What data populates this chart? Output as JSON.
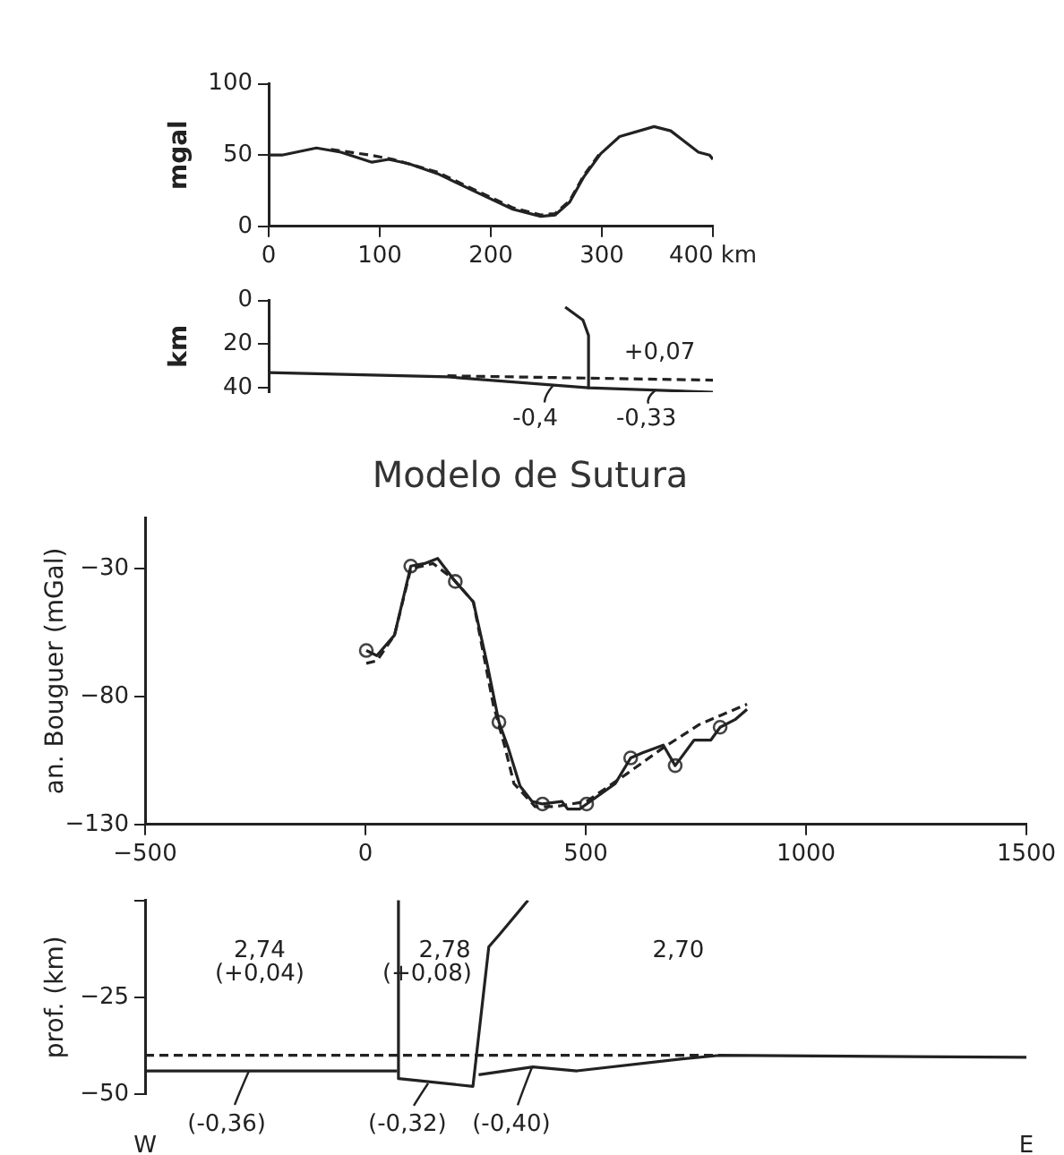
{
  "chart_data": [
    {
      "type": "line",
      "ylabel": "mgal",
      "xlim": [
        0,
        400
      ],
      "xticks": [
        0,
        100,
        200,
        300,
        {
          "value": 400,
          "label": "400 km"
        }
      ],
      "ylim": [
        0,
        100
      ],
      "yticks": [
        0,
        50,
        100
      ],
      "grid": false,
      "legend": false,
      "series": [
        {
          "color": "#222222",
          "line_style": "solid",
          "marker": "none",
          "x": [
            0,
            12,
            43,
            65,
            93,
            108,
            126,
            152,
            187,
            220,
            245,
            258,
            271,
            284,
            299,
            316,
            347,
            362,
            387,
            397,
            400
          ],
          "values": [
            50,
            50,
            55,
            52,
            45,
            47,
            44,
            37,
            24,
            12,
            7,
            8,
            17,
            35,
            51,
            63,
            70,
            67,
            52,
            50,
            47
          ]
        },
        {
          "color": "#222222",
          "line_style": "dashed",
          "marker": "none",
          "x": [
            56,
            91,
            112,
            152,
            187,
            220,
            245,
            258,
            271,
            284,
            299
          ],
          "values": [
            54,
            50,
            47,
            38,
            25,
            13,
            8,
            9,
            18,
            36,
            52
          ]
        }
      ]
    },
    {
      "type": "line",
      "ylabel": "km",
      "xlim": [
        0,
        400
      ],
      "ylim": [
        42,
        0
      ],
      "yticks": [
        0,
        20,
        40
      ],
      "tick_labels": "y",
      "grid": false,
      "legend": false,
      "series": [
        {
          "color": "#222222",
          "line_style": "solid",
          "marker": "none",
          "x": [
            0,
            161,
            288,
            400
          ],
          "values": [
            33,
            35,
            40,
            42
          ]
        },
        {
          "color": "#222222",
          "line_style": "dashed",
          "marker": "none",
          "x": [
            161,
            400
          ],
          "values": [
            34.5,
            36.5
          ]
        },
        {
          "color": "#222222",
          "line_style": "solid",
          "marker": "none",
          "x": [
            267,
            283,
            288,
            288
          ],
          "values": [
            3,
            9,
            16,
            40
          ]
        }
      ],
      "annotations": [
        "+0,07",
        "-0,4",
        "-0,33"
      ]
    },
    {
      "type": "line",
      "title": "Modelo de Sutura",
      "ylabel": "an. Bouguer (mGal)",
      "xlim": [
        -500,
        1500
      ],
      "xticks": [
        -500,
        0,
        500,
        1000,
        1500
      ],
      "ylim": [
        -130,
        -10
      ],
      "yticks": [
        -30,
        -80,
        -130
      ],
      "grid": false,
      "legend": false,
      "series": [
        {
          "color": "#222222",
          "line_style": "solid",
          "marker": "none",
          "x": [
            2,
            26,
            66,
            103,
            134,
            164,
            204,
            245,
            276,
            303,
            324,
            351,
            378,
            402,
            446,
            459,
            486,
            502,
            567,
            602,
            629,
            676,
            703,
            746,
            784,
            805,
            839,
            866
          ],
          "values": [
            -62,
            -64,
            -56,
            -29,
            -28,
            -26,
            -35,
            -43,
            -67,
            -90,
            -100,
            -115,
            -121,
            -122,
            -121,
            -124,
            -124,
            -122,
            -114,
            -104,
            -102,
            -99,
            -107,
            -97,
            -97,
            -92,
            -89,
            -85
          ]
        },
        {
          "color": "#222222",
          "line_style": "dashed",
          "marker": "none",
          "x": [
            2,
            26,
            66,
            103,
            154,
            199,
            245,
            290,
            317,
            337,
            385,
            432,
            502,
            595,
            676,
            757,
            811,
            866
          ],
          "values": [
            -67,
            -66,
            -56,
            -30,
            -28,
            -34,
            -43,
            -83,
            -100,
            -114,
            -123,
            -123,
            -121,
            -110,
            -100,
            -91,
            -87,
            -83
          ]
        },
        {
          "type": "scatter",
          "color": "#444444",
          "marker": "circle",
          "x": [
            2,
            103,
            204,
            303,
            402,
            502,
            602,
            703,
            805
          ],
          "values": [
            -62,
            -29,
            -35,
            -90,
            -122,
            -122,
            -104,
            -107,
            -92
          ]
        }
      ]
    },
    {
      "type": "line",
      "ylabel": "prof. (km)",
      "xlim": [
        -500,
        1500
      ],
      "ylim": [
        -50,
        0
      ],
      "yticks": [
        {
          "value": 0,
          "label": null
        },
        -25,
        -50
      ],
      "tick_labels": "y",
      "grid": false,
      "legend": false,
      "series": [
        {
          "color": "#222222",
          "line_style": "dashed",
          "marker": "none",
          "x": [
            -500,
            803
          ],
          "values": [
            -40,
            -40
          ]
        },
        {
          "color": "#222222",
          "line_style": "solid",
          "marker": "none",
          "x": [
            -500,
            72
          ],
          "values": [
            -44,
            -44
          ]
        },
        {
          "color": "#222222",
          "line_style": "solid",
          "marker": "none",
          "x": [
            75,
            75,
            244,
            280,
            303,
            369
          ],
          "values": [
            0,
            -46,
            -48,
            -12,
            -9,
            0
          ]
        },
        {
          "color": "#222222",
          "line_style": "solid",
          "marker": "none",
          "x": [
            257,
            380,
            480,
            710,
            803,
            1500
          ],
          "values": [
            -45,
            -43,
            -44,
            -41,
            -40,
            -40.5
          ]
        }
      ],
      "annotations": [
        "2,74",
        "(+0,04)",
        "2,78",
        "(+0,08)",
        "2,70",
        {
          "text": "(-0,36)",
          "x": -266,
          "y": -44
        },
        {
          "text": "(-0,32)",
          "x": 144,
          "y": -47
        },
        {
          "text": "(-0,40)",
          "x": 380,
          "y": -43
        },
        "W",
        "E"
      ]
    }
  ]
}
